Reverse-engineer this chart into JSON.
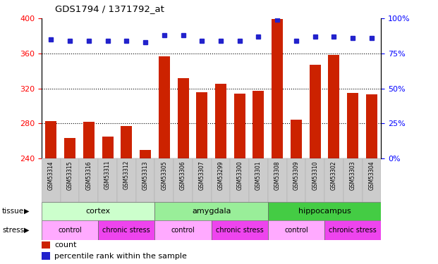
{
  "title": "GDS1794 / 1371792_at",
  "samples": [
    "GSM53314",
    "GSM53315",
    "GSM53316",
    "GSM53311",
    "GSM53312",
    "GSM53313",
    "GSM53305",
    "GSM53306",
    "GSM53307",
    "GSM53299",
    "GSM53300",
    "GSM53301",
    "GSM53308",
    "GSM53309",
    "GSM53310",
    "GSM53302",
    "GSM53303",
    "GSM53304"
  ],
  "counts": [
    283,
    263,
    282,
    265,
    277,
    250,
    357,
    332,
    316,
    325,
    314,
    317,
    399,
    284,
    347,
    358,
    315,
    313
  ],
  "percentiles": [
    85,
    84,
    84,
    84,
    84,
    83,
    88,
    88,
    84,
    84,
    84,
    87,
    99,
    84,
    87,
    87,
    86,
    86
  ],
  "bar_color": "#cc2200",
  "dot_color": "#2222cc",
  "ylim_left": [
    240,
    400
  ],
  "ylim_right": [
    0,
    100
  ],
  "yticks_left": [
    240,
    280,
    320,
    360,
    400
  ],
  "yticks_right": [
    0,
    25,
    50,
    75,
    100
  ],
  "tissue_groups": [
    {
      "label": "cortex",
      "start": 0,
      "end": 6,
      "color": "#ccffcc"
    },
    {
      "label": "amygdala",
      "start": 6,
      "end": 12,
      "color": "#99ee99"
    },
    {
      "label": "hippocampus",
      "start": 12,
      "end": 18,
      "color": "#44cc44"
    }
  ],
  "stress_groups": [
    {
      "label": "control",
      "start": 0,
      "end": 3
    },
    {
      "label": "chronic stress",
      "start": 3,
      "end": 6
    },
    {
      "label": "control",
      "start": 6,
      "end": 9
    },
    {
      "label": "chronic stress",
      "start": 9,
      "end": 12
    },
    {
      "label": "control",
      "start": 12,
      "end": 15
    },
    {
      "label": "chronic stress",
      "start": 15,
      "end": 18
    }
  ],
  "stress_control_color": "#ffaaff",
  "stress_chronic_color": "#ee44ee",
  "xlabel_bg_color": "#cccccc",
  "legend_count_color": "#cc2200",
  "legend_dot_color": "#2222cc"
}
